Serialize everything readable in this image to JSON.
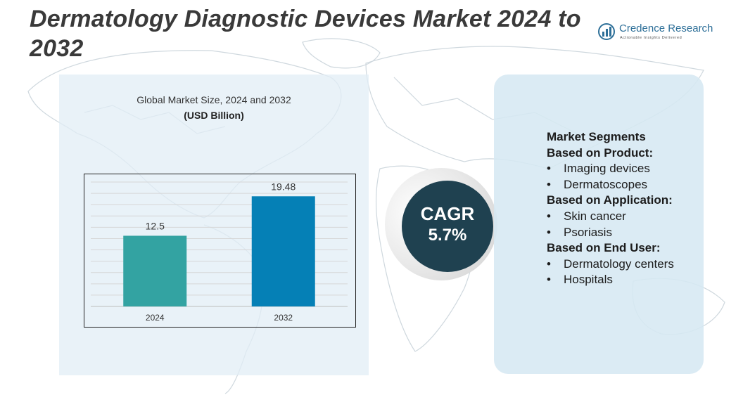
{
  "header": {
    "title": "Dermatology Diagnostic Devices Market 2024 to 2032",
    "logo_name": "Credence Research",
    "logo_tagline": "Actionable Insights Delivered"
  },
  "chart_data": {
    "type": "bar",
    "title": "Global Market Size, 2024 and 2032",
    "subtitle": "(USD Billion)",
    "categories": [
      "2024",
      "2032"
    ],
    "values": [
      12.5,
      19.48
    ],
    "ylim": [
      0,
      22
    ],
    "grid": true,
    "colors": [
      "#33a3a2",
      "#0580b6"
    ],
    "value_labels": [
      "12.5",
      "19.48"
    ]
  },
  "cagr": {
    "label": "CAGR",
    "value": "5.7%"
  },
  "segments": [
    {
      "heading": "Market Segments"
    },
    {
      "heading": "Based on Product:",
      "items": [
        "Imaging devices",
        "Dermatoscopes"
      ]
    },
    {
      "heading": "Based on Application:",
      "items": [
        "Skin cancer",
        "Psoriasis"
      ]
    },
    {
      "heading": "Based on End User:",
      "items": [
        "Dermatology centers",
        "Hospitals"
      ]
    }
  ]
}
